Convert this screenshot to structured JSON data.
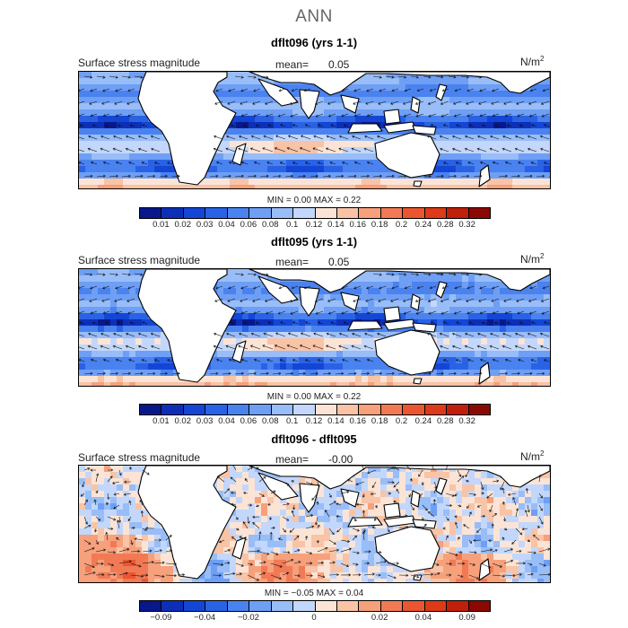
{
  "title": "ANN",
  "units_base": "N/m",
  "units_exp": "2",
  "panels": [
    {
      "title": "dflt096 (yrs 1-1)",
      "field": "Surface stress magnitude",
      "mean_label": "mean=",
      "mean_value": "0.05",
      "stats": "MIN =     0.00  MAX =     0.22",
      "kind": "abs"
    },
    {
      "title": "dflt095 (yrs 1-1)",
      "field": "Surface stress magnitude",
      "mean_label": "mean=",
      "mean_value": "0.05",
      "stats": "MIN =     0.00  MAX =     0.22",
      "kind": "abs"
    },
    {
      "title": "dflt096 - dflt095",
      "field": "Surface stress magnitude",
      "mean_label": "mean=",
      "mean_value": "-0.00",
      "stats": "MIN =    −0.05  MAX =     0.04",
      "kind": "diff"
    }
  ],
  "colorbar_abs": {
    "colors": [
      "#08188a",
      "#0d2fb8",
      "#1446d6",
      "#2a62e6",
      "#4a82f0",
      "#6e9ff5",
      "#98bdf8",
      "#c2d7fb",
      "#fbe4d6",
      "#f9c3a6",
      "#f6a07c",
      "#f17a55",
      "#ea5630",
      "#dc3a18",
      "#c0200b",
      "#8a0a03"
    ],
    "labels": [
      "0.01",
      "0.02",
      "0.03",
      "0.04",
      "0.06",
      "0.08",
      "0.1",
      "0.12",
      "0.14",
      "0.16",
      "0.18",
      "0.2",
      "0.24",
      "0.28",
      "0.32"
    ]
  },
  "colorbar_diff": {
    "colors": [
      "#08188a",
      "#0d2fb8",
      "#1446d6",
      "#2a62e6",
      "#4a82f0",
      "#6e9ff5",
      "#98bdf8",
      "#c2d7fb",
      "#fbe4d6",
      "#f9c3a6",
      "#f6a07c",
      "#f17a55",
      "#ea5630",
      "#dc3a18",
      "#c0200b",
      "#8a0a03"
    ],
    "labels": [
      "−0.09",
      "−0.04",
      "−0.02",
      "0",
      "0.02",
      "0.04",
      "0.09"
    ]
  },
  "chart_data": [
    {
      "type": "heatmap",
      "title": "dflt096 (yrs 1-1)",
      "variable": "Surface stress magnitude",
      "units": "N/m2",
      "mean": 0.05,
      "min": 0.0,
      "max": 0.22,
      "contour_levels": [
        0.01,
        0.02,
        0.03,
        0.04,
        0.06,
        0.08,
        0.1,
        0.12,
        0.14,
        0.16,
        0.18,
        0.2,
        0.24,
        0.28,
        0.32
      ]
    },
    {
      "type": "heatmap",
      "title": "dflt095 (yrs 1-1)",
      "variable": "Surface stress magnitude",
      "units": "N/m2",
      "mean": 0.05,
      "min": 0.0,
      "max": 0.22,
      "contour_levels": [
        0.01,
        0.02,
        0.03,
        0.04,
        0.06,
        0.08,
        0.1,
        0.12,
        0.14,
        0.16,
        0.18,
        0.2,
        0.24,
        0.28,
        0.32
      ]
    },
    {
      "type": "heatmap",
      "title": "dflt096 - dflt095",
      "variable": "Surface stress magnitude",
      "units": "N/m2",
      "mean": -0.0,
      "min": -0.05,
      "max": 0.04,
      "contour_labels": [
        -0.09,
        -0.04,
        -0.02,
        0,
        0.02,
        0.04,
        0.09
      ]
    }
  ]
}
